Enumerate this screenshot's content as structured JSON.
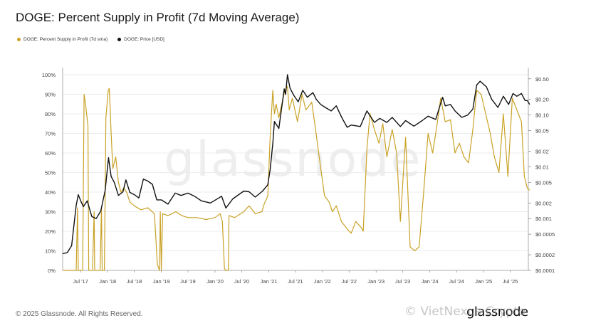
{
  "header": {
    "title": "DOGE: Percent Supply in Profit (7d Moving Average)"
  },
  "legend": [
    {
      "label": "DOGE: Percent Supply in Profit (7d sma)",
      "color": "#c9a227"
    },
    {
      "label": "DOGE: Price [USD]",
      "color": "#111111"
    }
  ],
  "footer": {
    "copyright": "© 2025 Glassnode. All Rights Reserved."
  },
  "watermark": {
    "background": "glassnode",
    "brand": "glassnode",
    "overlay": "© VietNexus Crypto"
  },
  "chart_data": {
    "type": "line",
    "title": "DOGE: Percent Supply in Profit (7d Moving Average)",
    "x_tick_labels": [
      "Jul '17",
      "Jan '18",
      "Jul '18",
      "Jan '19",
      "Jul '19",
      "Jan '20",
      "Jul '20",
      "Jan '21",
      "Jul '21",
      "Jan '22",
      "Jul '22",
      "Jan '23",
      "Jul '23",
      "Jan '24",
      "Jul '24",
      "Jan '25",
      "Jul '25"
    ],
    "x_range": [
      "2017-03",
      "2025-11"
    ],
    "y_left": {
      "ticks": [
        "0%",
        "10%",
        "20%",
        "30%",
        "40%",
        "50%",
        "60%",
        "70%",
        "80%",
        "90%",
        "100%"
      ],
      "range": [
        0,
        100
      ],
      "unit": "%"
    },
    "y_right": {
      "scale": "log",
      "ticks": [
        "$0.0001",
        "$0.0002",
        "$0.0005",
        "$0.001",
        "$0.002",
        "$0.005",
        "$0.01",
        "$0.02",
        "$0.05",
        "$0.10",
        "$0.20",
        "$0.50"
      ],
      "tick_values": [
        0.0001,
        0.0002,
        0.0005,
        0.001,
        0.002,
        0.005,
        0.01,
        0.02,
        0.05,
        0.1,
        0.2,
        0.5
      ]
    },
    "grid": "horizontal",
    "legend_position": "top-left",
    "series": [
      {
        "name": "DOGE: Percent Supply in Profit (7d sma)",
        "axis": "left",
        "color": "#c9a227",
        "points": [
          [
            "2017-03-01",
            0
          ],
          [
            "2017-06-01",
            0
          ],
          [
            "2017-06-10",
            32
          ],
          [
            "2017-06-15",
            0
          ],
          [
            "2017-07-15",
            0
          ],
          [
            "2017-07-25",
            90
          ],
          [
            "2017-08-05",
            84
          ],
          [
            "2017-08-20",
            74
          ],
          [
            "2017-08-25",
            0
          ],
          [
            "2017-09-20",
            0
          ],
          [
            "2017-10-01",
            30
          ],
          [
            "2017-10-05",
            0
          ],
          [
            "2017-11-10",
            0
          ],
          [
            "2017-11-20",
            32
          ],
          [
            "2017-11-25",
            0
          ],
          [
            "2017-12-10",
            0
          ],
          [
            "2017-12-20",
            78
          ],
          [
            "2018-01-05",
            92
          ],
          [
            "2018-01-12",
            93
          ],
          [
            "2018-01-25",
            70
          ],
          [
            "2018-02-05",
            52
          ],
          [
            "2018-02-25",
            58
          ],
          [
            "2018-03-15",
            45
          ],
          [
            "2018-04-01",
            40
          ],
          [
            "2018-04-20",
            42
          ],
          [
            "2018-05-10",
            40
          ],
          [
            "2018-06-01",
            35
          ],
          [
            "2018-07-01",
            33
          ],
          [
            "2018-08-15",
            31
          ],
          [
            "2018-10-01",
            32
          ],
          [
            "2018-11-15",
            29
          ],
          [
            "2018-12-05",
            3
          ],
          [
            "2018-12-20",
            0
          ],
          [
            "2018-12-25",
            30
          ],
          [
            "2019-01-01",
            0
          ],
          [
            "2019-01-10",
            29
          ],
          [
            "2019-02-15",
            28
          ],
          [
            "2019-03-15",
            29
          ],
          [
            "2019-04-10",
            30
          ],
          [
            "2019-05-20",
            28
          ],
          [
            "2019-07-01",
            27
          ],
          [
            "2019-09-01",
            27
          ],
          [
            "2019-11-01",
            26
          ],
          [
            "2020-01-01",
            27
          ],
          [
            "2020-02-05",
            29
          ],
          [
            "2020-02-20",
            25
          ],
          [
            "2020-03-05",
            1
          ],
          [
            "2020-03-15",
            0
          ],
          [
            "2020-04-01",
            0
          ],
          [
            "2020-04-05",
            28
          ],
          [
            "2020-05-15",
            27
          ],
          [
            "2020-07-15",
            30
          ],
          [
            "2020-08-20",
            33
          ],
          [
            "2020-10-01",
            29
          ],
          [
            "2020-11-15",
            30
          ],
          [
            "2020-12-01",
            34
          ],
          [
            "2020-12-25",
            38
          ],
          [
            "2021-01-10",
            68
          ],
          [
            "2021-01-28",
            92
          ],
          [
            "2021-02-08",
            80
          ],
          [
            "2021-02-20",
            85
          ],
          [
            "2021-03-10",
            78
          ],
          [
            "2021-04-20",
            92
          ],
          [
            "2021-05-08",
            94
          ],
          [
            "2021-05-20",
            82
          ],
          [
            "2021-06-10",
            88
          ],
          [
            "2021-07-15",
            76
          ],
          [
            "2021-08-15",
            90
          ],
          [
            "2021-09-10",
            82
          ],
          [
            "2021-10-20",
            86
          ],
          [
            "2021-11-15",
            72
          ],
          [
            "2021-12-15",
            55
          ],
          [
            "2022-01-15",
            38
          ],
          [
            "2022-02-15",
            35
          ],
          [
            "2022-03-10",
            30
          ],
          [
            "2022-04-05",
            33
          ],
          [
            "2022-05-10",
            25
          ],
          [
            "2022-06-20",
            21
          ],
          [
            "2022-07-15",
            19
          ],
          [
            "2022-08-15",
            25
          ],
          [
            "2022-09-20",
            22
          ],
          [
            "2022-10-05",
            20
          ],
          [
            "2022-10-30",
            62
          ],
          [
            "2022-11-20",
            80
          ],
          [
            "2022-12-20",
            72
          ],
          [
            "2023-01-20",
            65
          ],
          [
            "2023-02-15",
            75
          ],
          [
            "2023-03-15",
            58
          ],
          [
            "2023-04-20",
            72
          ],
          [
            "2023-05-20",
            60
          ],
          [
            "2023-06-15",
            25
          ],
          [
            "2023-07-20",
            68
          ],
          [
            "2023-08-20",
            12
          ],
          [
            "2023-09-20",
            10
          ],
          [
            "2023-10-20",
            12
          ],
          [
            "2023-11-20",
            40
          ],
          [
            "2023-12-20",
            70
          ],
          [
            "2024-01-20",
            60
          ],
          [
            "2024-02-20",
            75
          ],
          [
            "2024-03-15",
            88
          ],
          [
            "2024-04-15",
            76
          ],
          [
            "2024-05-20",
            77
          ],
          [
            "2024-06-20",
            60
          ],
          [
            "2024-07-20",
            65
          ],
          [
            "2024-08-20",
            58
          ],
          [
            "2024-09-20",
            55
          ],
          [
            "2024-10-20",
            72
          ],
          [
            "2024-11-15",
            92
          ],
          [
            "2024-12-15",
            90
          ],
          [
            "2025-01-15",
            80
          ],
          [
            "2025-02-15",
            70
          ],
          [
            "2025-03-15",
            58
          ],
          [
            "2025-04-15",
            50
          ],
          [
            "2025-05-15",
            80
          ],
          [
            "2025-06-15",
            48
          ],
          [
            "2025-07-15",
            88
          ],
          [
            "2025-08-15",
            82
          ],
          [
            "2025-09-15",
            76
          ],
          [
            "2025-10-05",
            48
          ],
          [
            "2025-10-25",
            42
          ],
          [
            "2025-11-10",
            41
          ]
        ]
      },
      {
        "name": "DOGE: Price [USD]",
        "axis": "right",
        "color": "#111111",
        "points": [
          [
            "2017-03-01",
            0.00021
          ],
          [
            "2017-04-01",
            0.00022
          ],
          [
            "2017-05-01",
            0.0003
          ],
          [
            "2017-06-01",
            0.0018
          ],
          [
            "2017-06-15",
            0.0029
          ],
          [
            "2017-07-05",
            0.0021
          ],
          [
            "2017-07-20",
            0.0017
          ],
          [
            "2017-08-15",
            0.0022
          ],
          [
            "2017-09-15",
            0.0011
          ],
          [
            "2017-10-15",
            0.001
          ],
          [
            "2017-11-15",
            0.0014
          ],
          [
            "2017-12-15",
            0.0035
          ],
          [
            "2018-01-07",
            0.015
          ],
          [
            "2018-01-25",
            0.0065
          ],
          [
            "2018-02-15",
            0.005
          ],
          [
            "2018-03-15",
            0.0028
          ],
          [
            "2018-04-15",
            0.0033
          ],
          [
            "2018-05-05",
            0.0056
          ],
          [
            "2018-06-01",
            0.0032
          ],
          [
            "2018-07-01",
            0.0029
          ],
          [
            "2018-08-01",
            0.0025
          ],
          [
            "2018-09-01",
            0.0058
          ],
          [
            "2018-10-01",
            0.0053
          ],
          [
            "2018-11-01",
            0.0046
          ],
          [
            "2018-12-01",
            0.0023
          ],
          [
            "2019-01-01",
            0.0023
          ],
          [
            "2019-02-15",
            0.0019
          ],
          [
            "2019-04-05",
            0.0031
          ],
          [
            "2019-05-15",
            0.0028
          ],
          [
            "2019-07-01",
            0.0031
          ],
          [
            "2019-08-15",
            0.0027
          ],
          [
            "2019-10-01",
            0.0022
          ],
          [
            "2019-12-01",
            0.002
          ],
          [
            "2020-02-15",
            0.0027
          ],
          [
            "2020-03-15",
            0.0016
          ],
          [
            "2020-05-01",
            0.0024
          ],
          [
            "2020-07-15",
            0.0034
          ],
          [
            "2020-08-20",
            0.0033
          ],
          [
            "2020-10-01",
            0.0026
          ],
          [
            "2020-11-20",
            0.0034
          ],
          [
            "2020-12-25",
            0.0045
          ],
          [
            "2021-01-10",
            0.0088
          ],
          [
            "2021-01-29",
            0.03
          ],
          [
            "2021-02-08",
            0.075
          ],
          [
            "2021-03-10",
            0.055
          ],
          [
            "2021-04-16",
            0.32
          ],
          [
            "2021-04-25",
            0.25
          ],
          [
            "2021-05-08",
            0.6
          ],
          [
            "2021-05-25",
            0.33
          ],
          [
            "2021-06-20",
            0.24
          ],
          [
            "2021-07-20",
            0.18
          ],
          [
            "2021-08-20",
            0.3
          ],
          [
            "2021-09-20",
            0.22
          ],
          [
            "2021-10-28",
            0.27
          ],
          [
            "2021-11-20",
            0.2
          ],
          [
            "2021-12-20",
            0.16
          ],
          [
            "2022-01-20",
            0.14
          ],
          [
            "2022-03-01",
            0.12
          ],
          [
            "2022-04-05",
            0.15
          ],
          [
            "2022-05-15",
            0.086
          ],
          [
            "2022-06-18",
            0.058
          ],
          [
            "2022-07-15",
            0.064
          ],
          [
            "2022-09-15",
            0.06
          ],
          [
            "2022-10-30",
            0.12
          ],
          [
            "2022-12-20",
            0.072
          ],
          [
            "2023-01-25",
            0.086
          ],
          [
            "2023-03-15",
            0.072
          ],
          [
            "2023-04-20",
            0.09
          ],
          [
            "2023-06-15",
            0.06
          ],
          [
            "2023-07-20",
            0.078
          ],
          [
            "2023-09-15",
            0.061
          ],
          [
            "2023-11-10",
            0.078
          ],
          [
            "2023-12-20",
            0.095
          ],
          [
            "2024-02-10",
            0.082
          ],
          [
            "2024-03-28",
            0.22
          ],
          [
            "2024-04-15",
            0.15
          ],
          [
            "2024-05-20",
            0.16
          ],
          [
            "2024-06-20",
            0.12
          ],
          [
            "2024-08-05",
            0.09
          ],
          [
            "2024-09-15",
            0.1
          ],
          [
            "2024-10-20",
            0.13
          ],
          [
            "2024-11-15",
            0.38
          ],
          [
            "2024-12-08",
            0.45
          ],
          [
            "2025-01-20",
            0.35
          ],
          [
            "2025-02-25",
            0.2
          ],
          [
            "2025-04-08",
            0.14
          ],
          [
            "2025-05-15",
            0.23
          ],
          [
            "2025-06-20",
            0.16
          ],
          [
            "2025-07-20",
            0.26
          ],
          [
            "2025-08-15",
            0.23
          ],
          [
            "2025-09-15",
            0.26
          ],
          [
            "2025-10-10",
            0.19
          ],
          [
            "2025-10-25",
            0.19
          ],
          [
            "2025-11-10",
            0.16
          ]
        ]
      }
    ]
  }
}
